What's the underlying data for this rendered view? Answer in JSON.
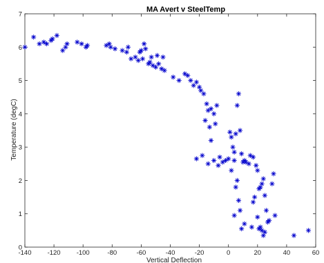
{
  "chart_data": {
    "type": "scatter",
    "title": "MA Avert v SteelTemp",
    "xlabel": "Vertical Deflection",
    "ylabel": "Temperature (degC)",
    "xlim": [
      -140,
      60
    ],
    "ylim": [
      0,
      7
    ],
    "xticks": [
      -140,
      -120,
      -100,
      -80,
      -60,
      -40,
      -20,
      0,
      20,
      40,
      60
    ],
    "yticks": [
      0,
      1,
      2,
      3,
      4,
      5,
      6,
      7
    ],
    "grid": false,
    "marker": "asterisk",
    "marker_color": "#0000cc",
    "points": [
      [
        -140,
        6.0
      ],
      [
        -134,
        6.3
      ],
      [
        -130,
        6.1
      ],
      [
        -127,
        6.15
      ],
      [
        -125,
        6.1
      ],
      [
        -122,
        6.2
      ],
      [
        -121,
        6.25
      ],
      [
        -118,
        6.35
      ],
      [
        -114,
        5.9
      ],
      [
        -112,
        6.0
      ],
      [
        -111,
        6.1
      ],
      [
        -104,
        6.15
      ],
      [
        -101,
        6.1
      ],
      [
        -98,
        6.0
      ],
      [
        -97,
        6.05
      ],
      [
        -84,
        6.05
      ],
      [
        -82,
        6.1
      ],
      [
        -81,
        6.0
      ],
      [
        -78,
        5.95
      ],
      [
        -73,
        5.9
      ],
      [
        -70,
        5.85
      ],
      [
        -69,
        6.0
      ],
      [
        -67,
        5.65
      ],
      [
        -64,
        5.7
      ],
      [
        -62,
        5.6
      ],
      [
        -61,
        5.85
      ],
      [
        -60,
        5.9
      ],
      [
        -59,
        5.65
      ],
      [
        -58,
        6.1
      ],
      [
        -57,
        5.95
      ],
      [
        -55,
        5.5
      ],
      [
        -54,
        5.55
      ],
      [
        -53,
        5.7
      ],
      [
        -52,
        5.45
      ],
      [
        -50,
        5.4
      ],
      [
        -49,
        5.75
      ],
      [
        -48,
        5.5
      ],
      [
        -46,
        5.35
      ],
      [
        -45,
        5.7
      ],
      [
        -44,
        5.3
      ],
      [
        -38,
        5.1
      ],
      [
        -34,
        5.0
      ],
      [
        -30,
        5.2
      ],
      [
        -28,
        5.15
      ],
      [
        -26,
        5.0
      ],
      [
        -24,
        4.85
      ],
      [
        -22,
        4.95
      ],
      [
        -20,
        4.8
      ],
      [
        -19,
        4.7
      ],
      [
        -17,
        4.6
      ],
      [
        -15,
        4.3
      ],
      [
        -14,
        4.1
      ],
      [
        -12,
        4.15
      ],
      [
        -10,
        4.0
      ],
      [
        -8,
        4.25
      ],
      [
        -16,
        3.8
      ],
      [
        -13,
        3.6
      ],
      [
        -9,
        3.7
      ],
      [
        -22,
        2.65
      ],
      [
        -18,
        2.75
      ],
      [
        -14,
        2.5
      ],
      [
        -12,
        3.2
      ],
      [
        -10,
        2.6
      ],
      [
        -7,
        2.45
      ],
      [
        -6,
        2.7
      ],
      [
        -4,
        2.55
      ],
      [
        -2,
        2.6
      ],
      [
        0,
        2.65
      ],
      [
        1,
        3.45
      ],
      [
        2,
        3.3
      ],
      [
        3,
        3.0
      ],
      [
        4,
        2.85
      ],
      [
        5,
        3.4
      ],
      [
        6,
        4.25
      ],
      [
        7,
        4.6
      ],
      [
        8,
        3.5
      ],
      [
        9,
        2.8
      ],
      [
        10,
        2.55
      ],
      [
        11,
        2.6
      ],
      [
        12,
        2.55
      ],
      [
        14,
        2.5
      ],
      [
        15,
        2.75
      ],
      [
        17,
        2.7
      ],
      [
        2,
        2.3
      ],
      [
        4,
        2.6
      ],
      [
        6,
        2.0
      ],
      [
        5,
        1.8
      ],
      [
        7,
        1.4
      ],
      [
        8,
        1.1
      ],
      [
        9,
        0.55
      ],
      [
        11,
        0.7
      ],
      [
        4,
        0.95
      ],
      [
        16,
        0.6
      ],
      [
        17,
        1.35
      ],
      [
        18,
        1.5
      ],
      [
        19,
        2.45
      ],
      [
        20,
        2.3
      ],
      [
        21,
        1.75
      ],
      [
        22,
        1.8
      ],
      [
        23,
        1.9
      ],
      [
        24,
        2.05
      ],
      [
        25,
        1.55
      ],
      [
        20,
        0.9
      ],
      [
        21,
        0.55
      ],
      [
        22,
        0.6
      ],
      [
        23,
        0.5
      ],
      [
        24,
        0.35
      ],
      [
        25,
        0.45
      ],
      [
        26,
        1.1
      ],
      [
        27,
        0.75
      ],
      [
        28,
        0.8
      ],
      [
        30,
        1.9
      ],
      [
        31,
        2.2
      ],
      [
        32,
        0.95
      ],
      [
        45,
        0.35
      ],
      [
        55,
        0.5
      ]
    ]
  }
}
